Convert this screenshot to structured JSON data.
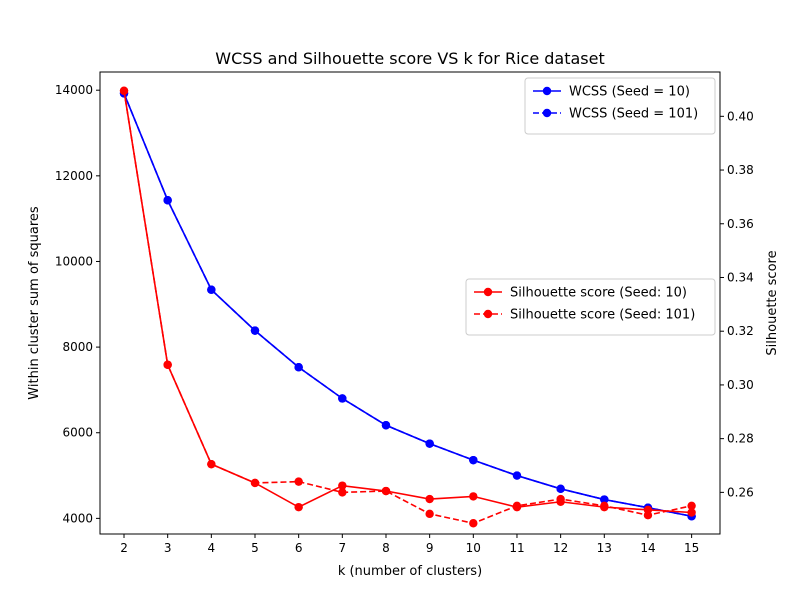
{
  "chart_data": {
    "type": "line",
    "title": "WCSS and Silhouette score VS k for Rice dataset",
    "xlabel": "k (number of clusters)",
    "ylabel_left": "Within cluster sum of squares",
    "ylabel_right": "Silhouette score",
    "x": [
      2,
      3,
      4,
      5,
      6,
      7,
      8,
      9,
      10,
      11,
      12,
      13,
      14,
      15
    ],
    "xlim": [
      1.45,
      15.65
    ],
    "ylim_left": [
      3635,
      14425
    ],
    "ylim_right": [
      0.2445,
      0.4165
    ],
    "yticks_left": [
      4000,
      6000,
      8000,
      10000,
      12000,
      14000
    ],
    "yticks_right": [
      0.26,
      0.28,
      0.3,
      0.32,
      0.34,
      0.36,
      0.38,
      0.4
    ],
    "grid": false,
    "series": [
      {
        "name": "WCSS (Seed = 10)",
        "axis": "left",
        "color": "#0000ff",
        "linestyle": "solid",
        "values": [
          13925,
          11430,
          9340,
          8385,
          7530,
          6800,
          6175,
          5745,
          5360,
          5000,
          4690,
          4440,
          4250,
          4050
        ]
      },
      {
        "name": "WCSS (Seed = 101)",
        "axis": "left",
        "color": "#0000ff",
        "linestyle": "dashed",
        "values": [
          13925,
          11430,
          9340,
          8385,
          7530,
          6800,
          6175,
          5745,
          5360,
          5000,
          4690,
          4440,
          4250,
          4050
        ]
      },
      {
        "name": "Silhouette score (Seed: 10)",
        "axis": "right",
        "color": "#ff0000",
        "linestyle": "solid",
        "values": [
          0.4095,
          0.3075,
          0.2705,
          0.2635,
          0.2545,
          0.2625,
          0.2605,
          0.2575,
          0.2585,
          0.2545,
          0.2565,
          0.2545,
          0.2535,
          0.2525
        ]
      },
      {
        "name": "Silhouette score (Seed: 101)",
        "axis": "right",
        "color": "#ff0000",
        "linestyle": "dashed",
        "values": [
          0.4095,
          0.3075,
          0.2705,
          0.2635,
          0.264,
          0.26,
          0.2605,
          0.252,
          0.2485,
          0.255,
          0.2575,
          0.255,
          0.2515,
          0.255
        ]
      }
    ],
    "legends": [
      {
        "placement": "upper-right",
        "series": [
          0,
          1
        ]
      },
      {
        "placement": "center-right",
        "series": [
          2,
          3
        ]
      }
    ]
  }
}
